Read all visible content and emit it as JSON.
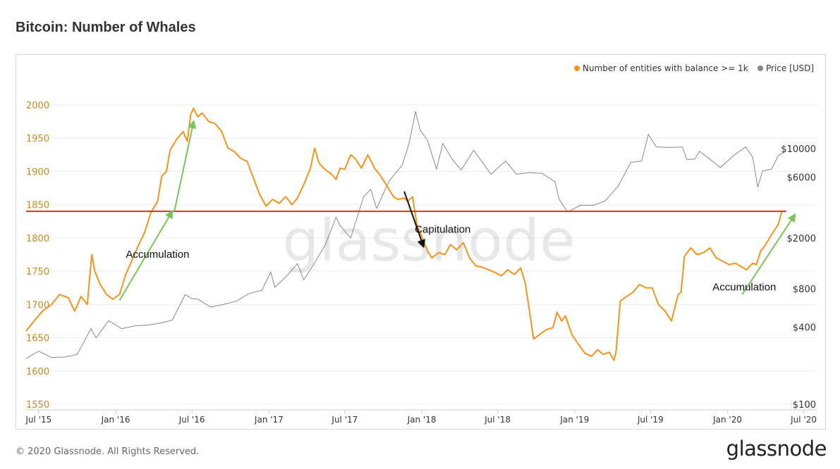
{
  "page": {
    "title": "Bitcoin: Number of Whales",
    "footer": "© 2020 Glassnode. All Rights Reserved.",
    "logo": "glassnode",
    "watermark": "glassnode"
  },
  "colors": {
    "whales": "#f7931a",
    "price": "#888888",
    "threshold": "#e0301e",
    "arrow_up": "#7dc35b",
    "arrow_down": "#111111",
    "left_tick": "#c98a1e",
    "grid": "#eeeeee"
  },
  "chart_data": {
    "type": "line",
    "title": "Bitcoin: Number of Whales",
    "legend": {
      "placement": "top-right",
      "entries": [
        "Number of entities with balance >= 1k",
        "Price [USD]"
      ]
    },
    "grid": true,
    "x_axis": {
      "type": "date",
      "range": [
        "2015-06-01",
        "2020-08-01"
      ],
      "ticks": [
        {
          "date": "2015-07-01",
          "label": "Jul '15"
        },
        {
          "date": "2016-01-01",
          "label": "Jan '16"
        },
        {
          "date": "2016-07-01",
          "label": "Jul '16"
        },
        {
          "date": "2017-01-01",
          "label": "Jan '17"
        },
        {
          "date": "2017-07-01",
          "label": "Jul '17"
        },
        {
          "date": "2018-01-01",
          "label": "Jan '18"
        },
        {
          "date": "2018-07-01",
          "label": "Jul '18"
        },
        {
          "date": "2019-01-01",
          "label": "Jan '19"
        },
        {
          "date": "2019-07-01",
          "label": "Jul '19"
        },
        {
          "date": "2020-01-01",
          "label": "Jan '20"
        },
        {
          "date": "2020-07-01",
          "label": "Jul '20"
        }
      ]
    },
    "y_left": {
      "range": [
        1550,
        2000
      ],
      "ticks": [
        1550,
        1600,
        1650,
        1700,
        1750,
        1800,
        1850,
        1900,
        1950,
        2000
      ]
    },
    "y_right": {
      "scale": "log",
      "ticks": [
        {
          "value": 100,
          "label": "$100"
        },
        {
          "value": 400,
          "label": "$400"
        },
        {
          "value": 800,
          "label": "$800"
        },
        {
          "value": 2000,
          "label": "$2000"
        },
        {
          "value": 6000,
          "label": "$6000"
        },
        {
          "value": 10000,
          "label": "$10000"
        }
      ]
    },
    "series": [
      {
        "name": "Number of entities with balance >= 1k",
        "axis": "left",
        "points": [
          [
            "2015-06-01",
            1660
          ],
          [
            "2015-06-20",
            1675
          ],
          [
            "2015-07-10",
            1690
          ],
          [
            "2015-08-01",
            1700
          ],
          [
            "2015-08-20",
            1715
          ],
          [
            "2015-09-10",
            1710
          ],
          [
            "2015-09-25",
            1690
          ],
          [
            "2015-10-10",
            1712
          ],
          [
            "2015-10-25",
            1700
          ],
          [
            "2015-11-05",
            1775
          ],
          [
            "2015-11-12",
            1750
          ],
          [
            "2015-11-25",
            1730
          ],
          [
            "2015-12-10",
            1715
          ],
          [
            "2015-12-25",
            1708
          ],
          [
            "2016-01-10",
            1715
          ],
          [
            "2016-01-25",
            1745
          ],
          [
            "2016-02-10",
            1768
          ],
          [
            "2016-02-25",
            1790
          ],
          [
            "2016-03-10",
            1808
          ],
          [
            "2016-03-25",
            1838
          ],
          [
            "2016-04-10",
            1855
          ],
          [
            "2016-04-20",
            1893
          ],
          [
            "2016-05-01",
            1900
          ],
          [
            "2016-05-10",
            1932
          ],
          [
            "2016-05-25",
            1948
          ],
          [
            "2016-06-10",
            1960
          ],
          [
            "2016-06-20",
            1945
          ],
          [
            "2016-06-28",
            1985
          ],
          [
            "2016-07-05",
            1995
          ],
          [
            "2016-07-15",
            1982
          ],
          [
            "2016-07-25",
            1988
          ],
          [
            "2016-08-10",
            1975
          ],
          [
            "2016-08-25",
            1972
          ],
          [
            "2016-09-10",
            1960
          ],
          [
            "2016-09-25",
            1935
          ],
          [
            "2016-10-10",
            1930
          ],
          [
            "2016-10-25",
            1920
          ],
          [
            "2016-11-10",
            1915
          ],
          [
            "2016-11-25",
            1890
          ],
          [
            "2016-12-10",
            1865
          ],
          [
            "2016-12-25",
            1848
          ],
          [
            "2017-01-10",
            1858
          ],
          [
            "2017-01-25",
            1852
          ],
          [
            "2017-02-10",
            1862
          ],
          [
            "2017-02-25",
            1850
          ],
          [
            "2017-03-10",
            1860
          ],
          [
            "2017-03-25",
            1880
          ],
          [
            "2017-04-10",
            1905
          ],
          [
            "2017-04-20",
            1935
          ],
          [
            "2017-05-01",
            1912
          ],
          [
            "2017-05-15",
            1903
          ],
          [
            "2017-06-01",
            1895
          ],
          [
            "2017-06-10",
            1888
          ],
          [
            "2017-06-20",
            1905
          ],
          [
            "2017-07-01",
            1903
          ],
          [
            "2017-07-15",
            1925
          ],
          [
            "2017-07-25",
            1920
          ],
          [
            "2017-08-10",
            1905
          ],
          [
            "2017-08-25",
            1925
          ],
          [
            "2017-09-10",
            1905
          ],
          [
            "2017-09-25",
            1893
          ],
          [
            "2017-10-10",
            1878
          ],
          [
            "2017-10-25",
            1862
          ],
          [
            "2017-11-05",
            1858
          ],
          [
            "2017-11-20",
            1860
          ],
          [
            "2017-11-28",
            1855
          ],
          [
            "2017-12-10",
            1862
          ],
          [
            "2017-12-20",
            1820
          ],
          [
            "2018-01-01",
            1802
          ],
          [
            "2018-01-15",
            1780
          ],
          [
            "2018-01-25",
            1770
          ],
          [
            "2018-02-10",
            1778
          ],
          [
            "2018-02-25",
            1775
          ],
          [
            "2018-03-10",
            1790
          ],
          [
            "2018-03-25",
            1782
          ],
          [
            "2018-04-10",
            1793
          ],
          [
            "2018-04-25",
            1770
          ],
          [
            "2018-05-10",
            1758
          ],
          [
            "2018-05-25",
            1756
          ],
          [
            "2018-06-10",
            1752
          ],
          [
            "2018-06-25",
            1748
          ],
          [
            "2018-07-10",
            1743
          ],
          [
            "2018-07-25",
            1752
          ],
          [
            "2018-08-10",
            1745
          ],
          [
            "2018-08-25",
            1755
          ],
          [
            "2018-09-05",
            1732
          ],
          [
            "2018-09-15",
            1690
          ],
          [
            "2018-09-25",
            1648
          ],
          [
            "2018-10-10",
            1655
          ],
          [
            "2018-10-25",
            1662
          ],
          [
            "2018-11-10",
            1665
          ],
          [
            "2018-11-20",
            1688
          ],
          [
            "2018-12-01",
            1675
          ],
          [
            "2018-12-10",
            1683
          ],
          [
            "2018-12-25",
            1655
          ],
          [
            "2019-01-10",
            1640
          ],
          [
            "2019-01-25",
            1627
          ],
          [
            "2019-02-10",
            1622
          ],
          [
            "2019-02-25",
            1632
          ],
          [
            "2019-03-10",
            1625
          ],
          [
            "2019-03-25",
            1628
          ],
          [
            "2019-04-05",
            1616
          ],
          [
            "2019-04-10",
            1630
          ],
          [
            "2019-04-20",
            1705
          ],
          [
            "2019-05-05",
            1712
          ],
          [
            "2019-05-20",
            1718
          ],
          [
            "2019-06-05",
            1730
          ],
          [
            "2019-06-20",
            1725
          ],
          [
            "2019-07-05",
            1725
          ],
          [
            "2019-07-20",
            1700
          ],
          [
            "2019-08-05",
            1690
          ],
          [
            "2019-08-20",
            1675
          ],
          [
            "2019-09-05",
            1715
          ],
          [
            "2019-09-12",
            1718
          ],
          [
            "2019-09-20",
            1772
          ],
          [
            "2019-10-05",
            1785
          ],
          [
            "2019-10-20",
            1775
          ],
          [
            "2019-11-05",
            1778
          ],
          [
            "2019-11-20",
            1785
          ],
          [
            "2019-12-05",
            1770
          ],
          [
            "2019-12-20",
            1765
          ],
          [
            "2020-01-05",
            1760
          ],
          [
            "2020-01-20",
            1762
          ],
          [
            "2020-02-05",
            1756
          ],
          [
            "2020-02-15",
            1752
          ],
          [
            "2020-03-01",
            1762
          ],
          [
            "2020-03-10",
            1760
          ],
          [
            "2020-03-20",
            1780
          ],
          [
            "2020-04-01",
            1790
          ],
          [
            "2020-04-15",
            1805
          ],
          [
            "2020-05-01",
            1820
          ],
          [
            "2020-05-10",
            1840
          ],
          [
            "2020-05-20",
            1840
          ]
        ]
      },
      {
        "name": "Price [USD]",
        "axis": "right",
        "points": [
          [
            "2015-06-01",
            228
          ],
          [
            "2015-07-01",
            260
          ],
          [
            "2015-08-01",
            232
          ],
          [
            "2015-09-01",
            234
          ],
          [
            "2015-10-01",
            245
          ],
          [
            "2015-11-03",
            390
          ],
          [
            "2015-11-15",
            330
          ],
          [
            "2015-12-15",
            450
          ],
          [
            "2016-01-15",
            390
          ],
          [
            "2016-02-15",
            410
          ],
          [
            "2016-03-15",
            415
          ],
          [
            "2016-04-15",
            430
          ],
          [
            "2016-05-15",
            455
          ],
          [
            "2016-06-15",
            720
          ],
          [
            "2016-07-01",
            670
          ],
          [
            "2016-07-15",
            665
          ],
          [
            "2016-08-15",
            575
          ],
          [
            "2016-09-15",
            605
          ],
          [
            "2016-10-15",
            640
          ],
          [
            "2016-11-15",
            735
          ],
          [
            "2016-12-15",
            780
          ],
          [
            "2017-01-05",
            1080
          ],
          [
            "2017-01-15",
            820
          ],
          [
            "2017-02-15",
            1030
          ],
          [
            "2017-03-10",
            1260
          ],
          [
            "2017-03-25",
            940
          ],
          [
            "2017-04-15",
            1200
          ],
          [
            "2017-05-15",
            1750
          ],
          [
            "2017-06-10",
            2900
          ],
          [
            "2017-06-20",
            2500
          ],
          [
            "2017-07-15",
            2000
          ],
          [
            "2017-08-15",
            4200
          ],
          [
            "2017-09-01",
            4800
          ],
          [
            "2017-09-15",
            3400
          ],
          [
            "2017-10-15",
            5600
          ],
          [
            "2017-11-15",
            7400
          ],
          [
            "2017-12-01",
            10800
          ],
          [
            "2017-12-17",
            19500
          ],
          [
            "2017-12-28",
            14000
          ],
          [
            "2018-01-15",
            11500
          ],
          [
            "2018-02-05",
            6900
          ],
          [
            "2018-02-20",
            11000
          ],
          [
            "2018-03-15",
            8200
          ],
          [
            "2018-04-05",
            6800
          ],
          [
            "2018-05-05",
            9700
          ],
          [
            "2018-06-15",
            6300
          ],
          [
            "2018-07-20",
            8000
          ],
          [
            "2018-08-15",
            6300
          ],
          [
            "2018-09-15",
            6500
          ],
          [
            "2018-10-15",
            6400
          ],
          [
            "2018-11-15",
            5500
          ],
          [
            "2018-11-25",
            4000
          ],
          [
            "2018-12-15",
            3200
          ],
          [
            "2019-01-15",
            3600
          ],
          [
            "2019-02-15",
            3600
          ],
          [
            "2019-03-15",
            3900
          ],
          [
            "2019-04-15",
            5100
          ],
          [
            "2019-05-15",
            7800
          ],
          [
            "2019-06-10",
            8000
          ],
          [
            "2019-06-26",
            12900
          ],
          [
            "2019-07-15",
            10300
          ],
          [
            "2019-08-15",
            10200
          ],
          [
            "2019-09-15",
            10300
          ],
          [
            "2019-09-26",
            8200
          ],
          [
            "2019-10-15",
            8300
          ],
          [
            "2019-10-26",
            9500
          ],
          [
            "2019-11-15",
            8500
          ],
          [
            "2019-12-15",
            7100
          ],
          [
            "2020-01-15",
            8800
          ],
          [
            "2020-02-13",
            10300
          ],
          [
            "2020-03-01",
            8600
          ],
          [
            "2020-03-13",
            5000
          ],
          [
            "2020-03-25",
            6700
          ],
          [
            "2020-04-15",
            6900
          ],
          [
            "2020-05-01",
            8800
          ],
          [
            "2020-05-15",
            9400
          ]
        ]
      }
    ],
    "reference_line": {
      "y": 1840,
      "from": "2015-06-01",
      "to": "2020-05-20"
    },
    "annotations": [
      {
        "text": "Accumulation",
        "arrow_from": [
          "2016-01-10",
          1706
        ],
        "arrow_to": [
          "2016-05-15",
          1840
        ],
        "label_at": [
          "2016-04-10",
          1770
        ],
        "style": "up"
      },
      {
        "text": "Accumulation",
        "arrow_from": [
          "2016-05-20",
          1840
        ],
        "arrow_to": [
          "2016-07-05",
          1975
        ],
        "style": "up",
        "label": false
      },
      {
        "text": "Capitulation",
        "arrow_from": [
          "2017-11-20",
          1870
        ],
        "arrow_to": [
          "2018-01-05",
          1787
        ],
        "label_at": [
          "2018-02-20",
          1808
        ],
        "style": "down"
      },
      {
        "text": "Accumulation",
        "arrow_from": [
          "2020-02-05",
          1715
        ],
        "arrow_to": [
          "2020-06-10",
          1835
        ],
        "label_at": [
          "2020-02-10",
          1721
        ],
        "style": "up"
      }
    ]
  }
}
